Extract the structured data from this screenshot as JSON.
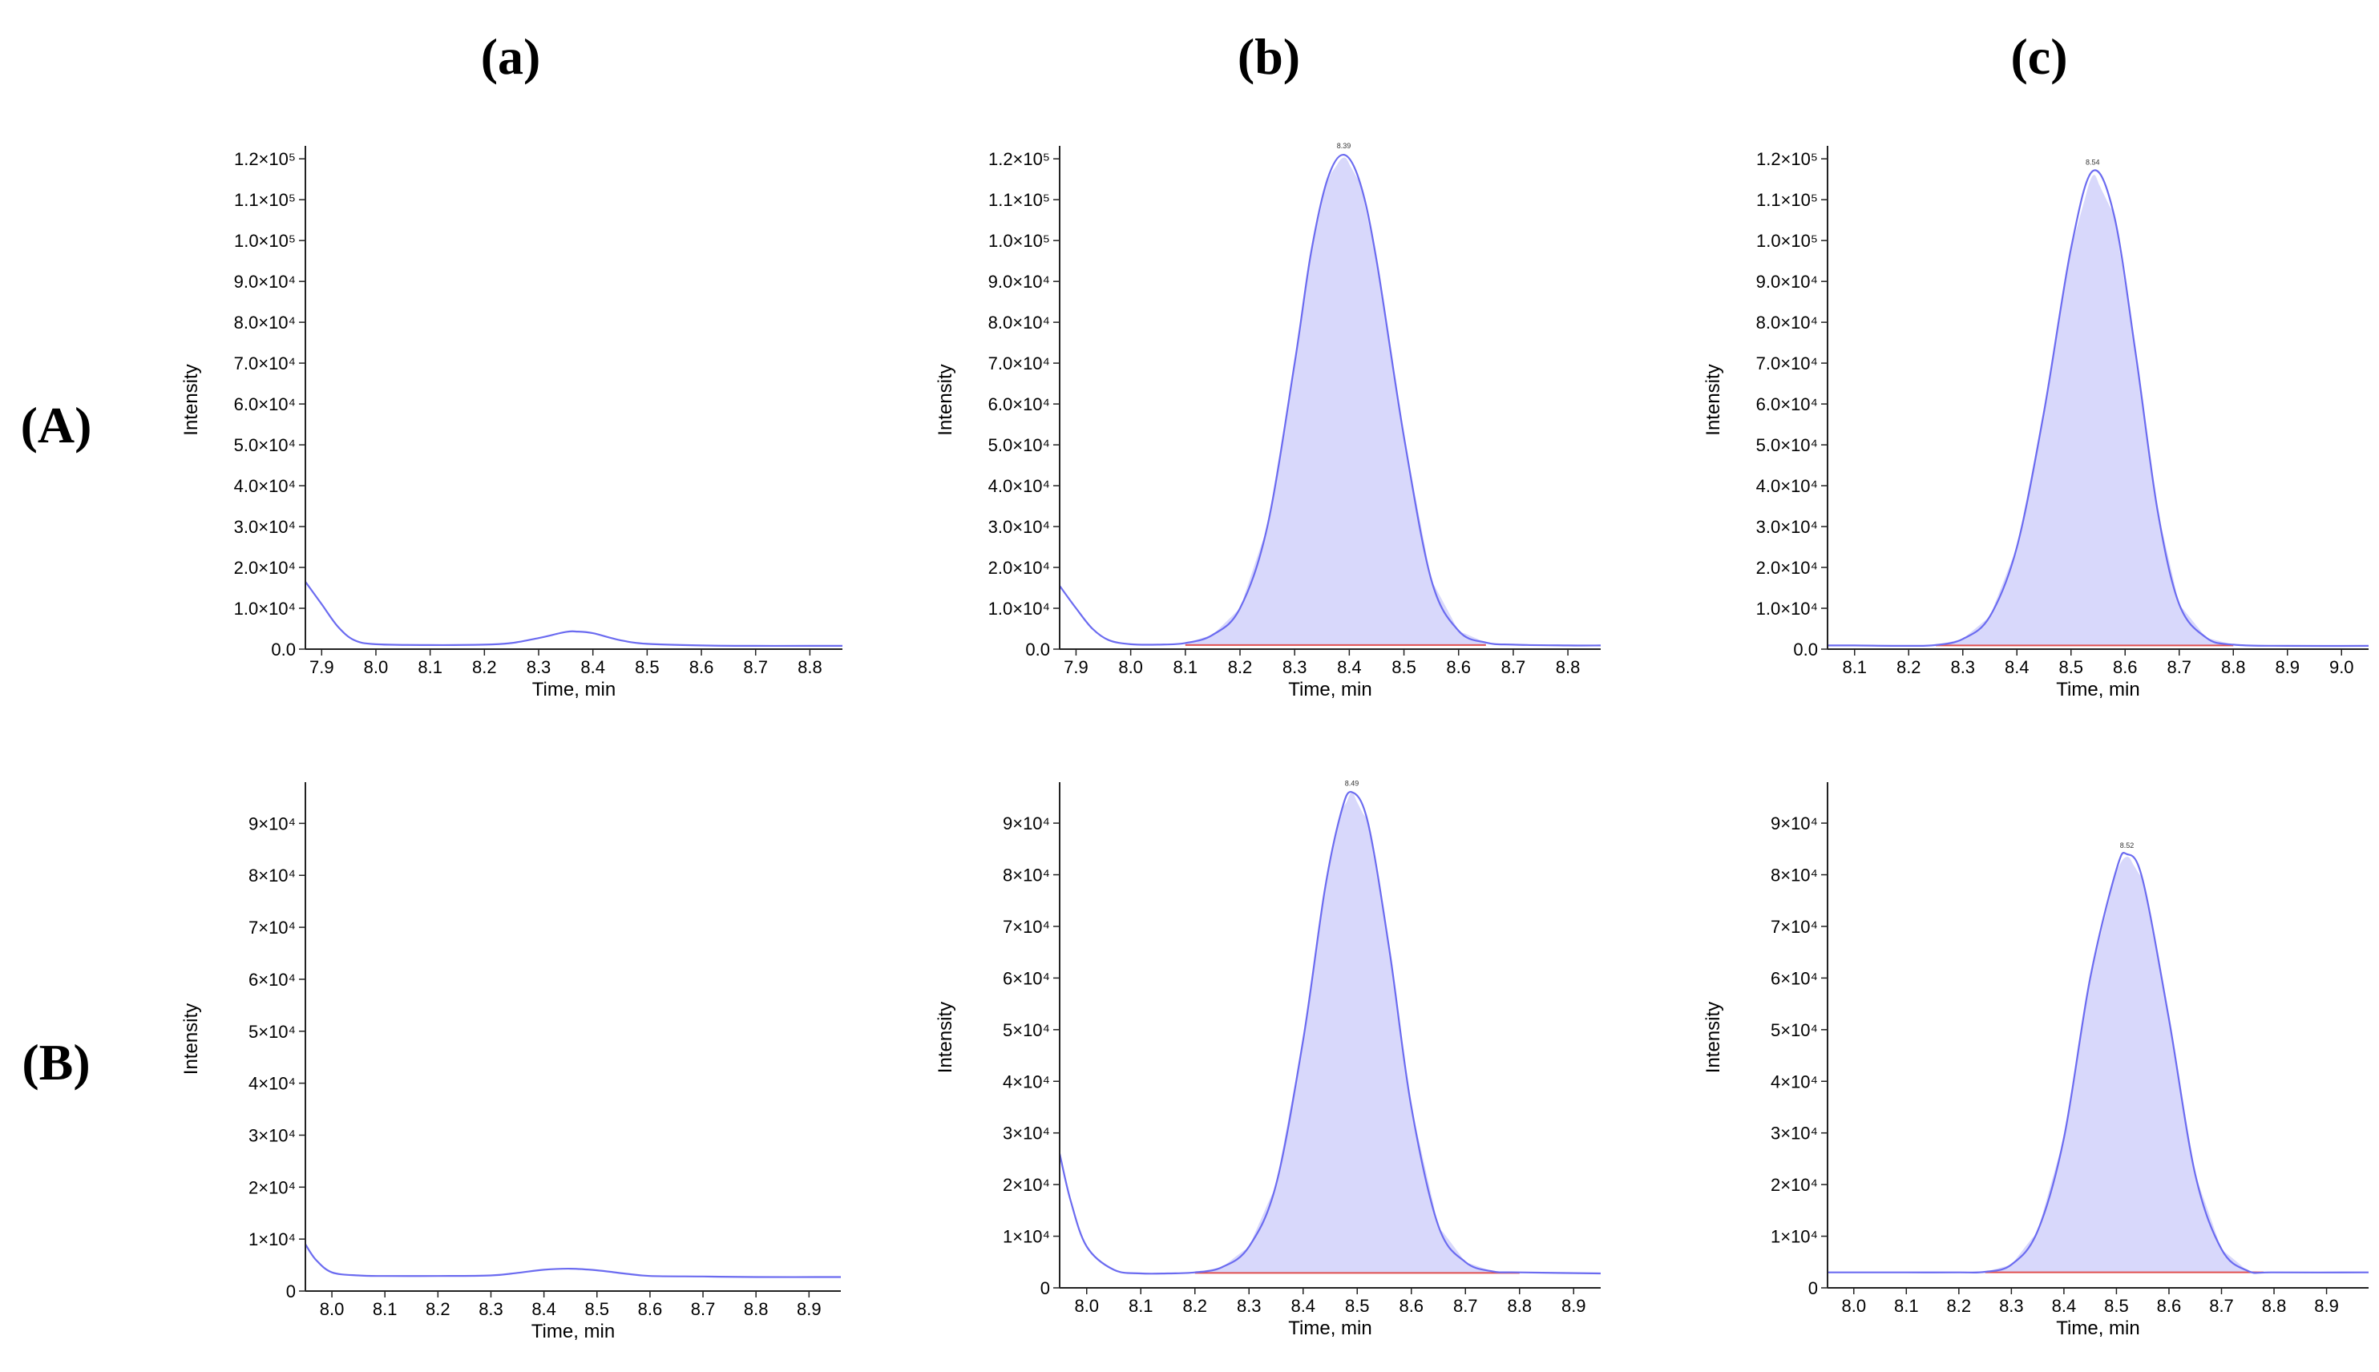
{
  "column_labels": [
    "(a)",
    "(b)",
    "(c)"
  ],
  "row_labels": [
    "(A)",
    "(B)"
  ],
  "colors": {
    "trace": "#6b6bf0",
    "fill": "#d8d8fb",
    "baseline": "#e05050",
    "axis": "#222222"
  },
  "chart_data": [
    {
      "type": "line",
      "panel": "A-a",
      "xlabel": "Time, min",
      "ylabel": "Intensity",
      "xlim": [
        7.87,
        8.86
      ],
      "ylim": [
        0,
        122000
      ],
      "xticks": [
        "7.9",
        "8.0",
        "8.1",
        "8.2",
        "8.3",
        "8.4",
        "8.5",
        "8.6",
        "8.7",
        "8.8"
      ],
      "yticks": [
        "0.0",
        "1.0×10⁴",
        "2.0×10⁴",
        "3.0×10⁴",
        "4.0×10⁴",
        "5.0×10⁴",
        "6.0×10⁴",
        "7.0×10⁴",
        "8.0×10⁴",
        "9.0×10⁴",
        "1.0×10⁵",
        "1.1×10⁵",
        "1.2×10⁵"
      ],
      "x": [
        7.87,
        7.9,
        7.93,
        7.96,
        8.0,
        8.1,
        8.2,
        8.25,
        8.3,
        8.35,
        8.37,
        8.4,
        8.45,
        8.5,
        8.6,
        8.7,
        8.8,
        8.86
      ],
      "y": [
        16500,
        11000,
        5500,
        2200,
        1200,
        1000,
        1100,
        1500,
        2700,
        4200,
        4300,
        3900,
        2200,
        1300,
        900,
        800,
        800,
        800
      ],
      "peak": null
    },
    {
      "type": "area",
      "panel": "A-b",
      "xlabel": "Time, min",
      "ylabel": "Intensity",
      "xlim": [
        7.87,
        8.86
      ],
      "ylim": [
        0,
        122000
      ],
      "xticks": [
        "7.9",
        "8.0",
        "8.1",
        "8.2",
        "8.3",
        "8.4",
        "8.5",
        "8.6",
        "8.7",
        "8.8"
      ],
      "yticks": [
        "0.0",
        "1.0×10⁴",
        "2.0×10⁴",
        "3.0×10⁴",
        "4.0×10⁴",
        "5.0×10⁴",
        "6.0×10⁴",
        "7.0×10⁴",
        "8.0×10⁴",
        "9.0×10⁴",
        "1.0×10⁵",
        "1.1×10⁵",
        "1.2×10⁵"
      ],
      "x": [
        7.87,
        7.9,
        7.93,
        7.96,
        8.0,
        8.05,
        8.1,
        8.15,
        8.2,
        8.25,
        8.3,
        8.33,
        8.36,
        8.39,
        8.42,
        8.45,
        8.5,
        8.55,
        8.6,
        8.65,
        8.7,
        8.8,
        8.86
      ],
      "y": [
        15500,
        10000,
        5000,
        2200,
        1200,
        1100,
        1500,
        3500,
        10000,
        30000,
        70000,
        97000,
        115000,
        121000,
        114000,
        95000,
        52000,
        17000,
        4500,
        1600,
        1100,
        900,
        900
      ],
      "peak": {
        "rt": "8.39",
        "start": 8.1,
        "end": 8.65,
        "baseline": 1000
      }
    },
    {
      "type": "area",
      "panel": "A-c",
      "xlabel": "Time, min",
      "ylabel": "Intensity",
      "xlim": [
        8.05,
        9.05
      ],
      "ylim": [
        0,
        122000
      ],
      "xticks": [
        "8.1",
        "8.2",
        "8.3",
        "8.4",
        "8.5",
        "8.6",
        "8.7",
        "8.8",
        "8.9",
        "9.0"
      ],
      "yticks": [
        "0.0",
        "1.0×10⁴",
        "2.0×10⁴",
        "3.0×10⁴",
        "4.0×10⁴",
        "5.0×10⁴",
        "6.0×10⁴",
        "7.0×10⁴",
        "8.0×10⁴",
        "9.0×10⁴",
        "1.0×10⁵",
        "1.1×10⁵",
        "1.2×10⁵"
      ],
      "x": [
        8.05,
        8.1,
        8.2,
        8.25,
        8.3,
        8.35,
        8.4,
        8.45,
        8.5,
        8.54,
        8.58,
        8.62,
        8.66,
        8.7,
        8.75,
        8.8,
        8.9,
        9.05
      ],
      "y": [
        900,
        900,
        800,
        1000,
        2500,
        8000,
        25000,
        58000,
        98000,
        117000,
        106000,
        72000,
        34000,
        11000,
        2800,
        1100,
        800,
        800
      ],
      "peak": {
        "rt": "8.54",
        "start": 8.25,
        "end": 8.8,
        "baseline": 900
      }
    },
    {
      "type": "line",
      "panel": "B-a",
      "xlabel": "Time, min",
      "ylabel": "Intensity",
      "xlim": [
        7.95,
        8.96
      ],
      "ylim": [
        0,
        97000
      ],
      "xticks": [
        "8.0",
        "8.1",
        "8.2",
        "8.3",
        "8.4",
        "8.5",
        "8.6",
        "8.7",
        "8.8",
        "8.9"
      ],
      "yticks": [
        "0",
        "1×10⁴",
        "2×10⁴",
        "3×10⁴",
        "4×10⁴",
        "5×10⁴",
        "6×10⁴",
        "7×10⁴",
        "8×10⁴",
        "9×10⁴"
      ],
      "x": [
        7.95,
        7.97,
        8.0,
        8.05,
        8.1,
        8.2,
        8.3,
        8.35,
        8.4,
        8.45,
        8.5,
        8.55,
        8.6,
        8.7,
        8.8,
        8.96
      ],
      "y": [
        9000,
        6000,
        3600,
        3000,
        2900,
        2900,
        3000,
        3500,
        4100,
        4300,
        4000,
        3400,
        2900,
        2800,
        2700,
        2700
      ],
      "peak": null
    },
    {
      "type": "area",
      "panel": "B-b",
      "xlabel": "Time, min",
      "ylabel": "Intensity",
      "xlim": [
        7.95,
        8.95
      ],
      "ylim": [
        0,
        97000
      ],
      "xticks": [
        "8.0",
        "8.1",
        "8.2",
        "8.3",
        "8.4",
        "8.5",
        "8.6",
        "8.7",
        "8.8",
        "8.9"
      ],
      "yticks": [
        "0",
        "1×10⁴",
        "2×10⁴",
        "3×10⁴",
        "4×10⁴",
        "5×10⁴",
        "6×10⁴",
        "7×10⁴",
        "8×10⁴",
        "9×10⁴"
      ],
      "x": [
        7.95,
        7.97,
        8.0,
        8.05,
        8.1,
        8.15,
        8.2,
        8.25,
        8.3,
        8.35,
        8.4,
        8.44,
        8.47,
        8.49,
        8.52,
        8.56,
        8.6,
        8.65,
        8.7,
        8.75,
        8.8,
        8.95
      ],
      "y": [
        26000,
        17000,
        8000,
        3500,
        2800,
        2800,
        3000,
        4000,
        8000,
        20000,
        48000,
        77000,
        92000,
        96000,
        90000,
        65000,
        35000,
        12000,
        5000,
        3200,
        3000,
        2800
      ],
      "peak": {
        "rt": "8.49",
        "start": 8.2,
        "end": 8.8,
        "baseline": 2900
      }
    },
    {
      "type": "area",
      "panel": "B-c",
      "xlabel": "Time, min",
      "ylabel": "Intensity",
      "xlim": [
        7.95,
        8.98
      ],
      "ylim": [
        0,
        97000
      ],
      "xticks": [
        "8.0",
        "8.1",
        "8.2",
        "8.3",
        "8.4",
        "8.5",
        "8.6",
        "8.7",
        "8.8",
        "8.9"
      ],
      "yticks": [
        "0",
        "1×10⁴",
        "2×10⁴",
        "3×10⁴",
        "4×10⁴",
        "5×10⁴",
        "6×10⁴",
        "7×10⁴",
        "8×10⁴",
        "9×10⁴"
      ],
      "x": [
        7.95,
        8.0,
        8.1,
        8.2,
        8.25,
        8.3,
        8.35,
        8.4,
        8.45,
        8.5,
        8.52,
        8.55,
        8.6,
        8.65,
        8.7,
        8.75,
        8.8,
        8.98
      ],
      "y": [
        3000,
        3000,
        3000,
        3000,
        3100,
        4500,
        11000,
        29000,
        60000,
        81000,
        84000,
        79000,
        52000,
        22000,
        7500,
        3300,
        3000,
        3000
      ],
      "peak": {
        "rt": "8.52",
        "start": 8.25,
        "end": 8.78,
        "baseline": 3000
      }
    }
  ]
}
